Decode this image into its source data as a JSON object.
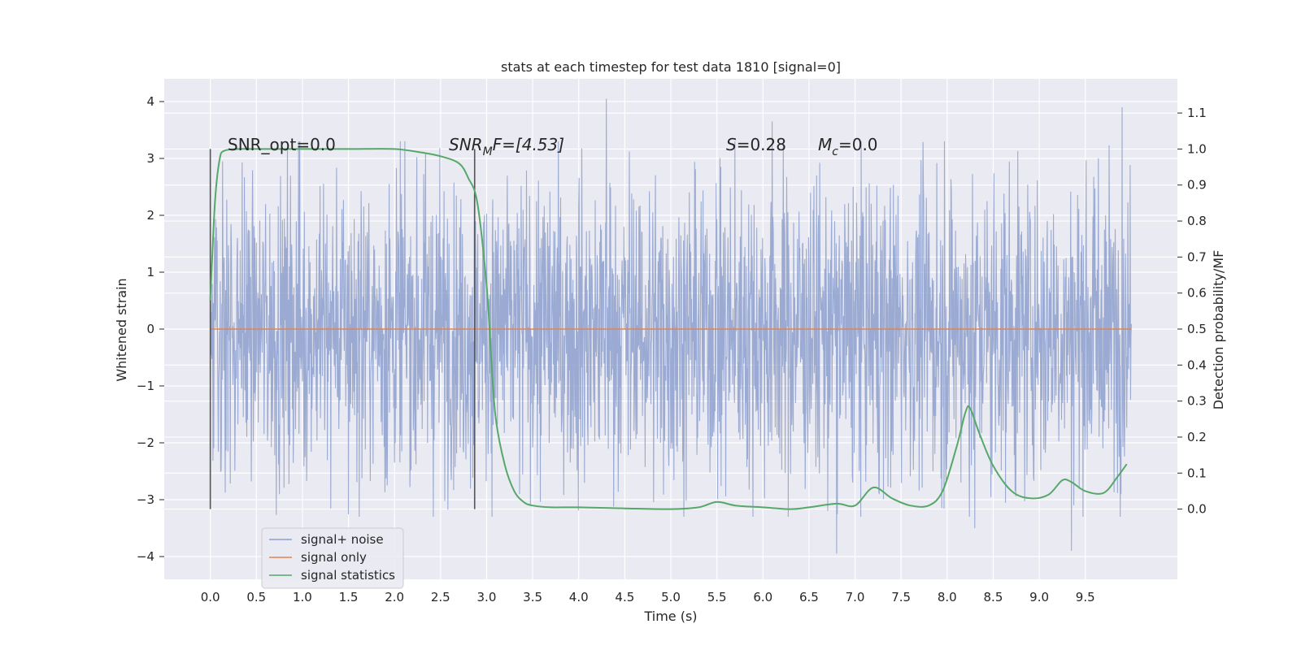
{
  "chart_data": {
    "type": "line",
    "title": "stats at each timestep for test data 1810 [signal=0]",
    "xlabel": "Time (s)",
    "ylabel": "Whitened strain",
    "y2label": "Detection probability/MF",
    "xlim": [
      -0.5,
      10.5
    ],
    "ylim": [
      -4.4,
      4.4
    ],
    "y2lim": [
      -0.195,
      1.195
    ],
    "xticks": [
      "0.0",
      "0.5",
      "1.0",
      "1.5",
      "2.0",
      "2.5",
      "3.0",
      "3.5",
      "4.0",
      "4.5",
      "5.0",
      "5.5",
      "6.0",
      "6.5",
      "7.0",
      "7.5",
      "8.0",
      "8.5",
      "9.0",
      "9.5"
    ],
    "yticks": [
      "4",
      "3",
      "2",
      "1",
      "0",
      "−1",
      "−2",
      "−3",
      "−4"
    ],
    "y2ticks": [
      "1.1",
      "1.0",
      "0.9",
      "0.8",
      "0.7",
      "0.6",
      "0.5",
      "0.4",
      "0.3",
      "0.2",
      "0.1",
      "0.0"
    ],
    "grid": true,
    "legend_position": "lower-left",
    "colors": {
      "noise": "#8c9fcc",
      "signal_only": "#dd8452",
      "statistics": "#55a868",
      "background": "#eaeaf2",
      "vline": "#555555"
    },
    "annotations": {
      "snr_opt": "SNR_opt=0.0",
      "snr_mf_base": "SNR",
      "snr_mf_sub": "M",
      "snr_mf_tail": "F=[4.53]",
      "s_var": "S",
      "s_value": "=0.28",
      "mc_var": "M",
      "mc_sub": "c",
      "mc_value": "=0.0"
    },
    "vertical_lines_x": [
      0.0,
      2.87
    ],
    "noise_series": {
      "name": "signal+ noise",
      "x_range": [
        0.0,
        10.0
      ],
      "typical_amplitude": 2.0,
      "notable_peaks": [
        {
          "x": 4.3,
          "y": 4.05
        },
        {
          "x": 9.9,
          "y": 3.9
        },
        {
          "x": 6.1,
          "y": 3.65
        },
        {
          "x": 6.8,
          "y": -3.95
        },
        {
          "x": 9.35,
          "y": -3.9
        },
        {
          "x": 8.3,
          "y": -3.5
        }
      ]
    },
    "signal_series": {
      "name": "signal only",
      "x": [
        0.0,
        10.0
      ],
      "y": [
        0.0,
        0.0
      ]
    },
    "statistics_series": {
      "name": "signal statistics",
      "x": [
        0.0,
        0.05,
        0.1,
        0.15,
        0.3,
        0.5,
        1.0,
        1.5,
        2.0,
        2.3,
        2.5,
        2.7,
        2.8,
        2.9,
        3.0,
        3.05,
        3.1,
        3.2,
        3.3,
        3.4,
        3.5,
        3.7,
        4.0,
        4.5,
        5.0,
        5.3,
        5.5,
        5.7,
        6.0,
        6.3,
        6.5,
        6.8,
        7.0,
        7.2,
        7.4,
        7.6,
        7.8,
        7.95,
        8.1,
        8.2,
        8.25,
        8.35,
        8.5,
        8.7,
        8.9,
        9.1,
        9.25,
        9.35,
        9.5,
        9.7,
        9.85,
        9.95
      ],
      "y": [
        0.58,
        0.85,
        0.97,
        0.995,
        1.0,
        1.0,
        1.0,
        1.0,
        1.0,
        0.99,
        0.98,
        0.96,
        0.92,
        0.85,
        0.62,
        0.42,
        0.25,
        0.12,
        0.05,
        0.02,
        0.01,
        0.005,
        0.005,
        0.002,
        0.0,
        0.005,
        0.02,
        0.01,
        0.005,
        0.0,
        0.005,
        0.015,
        0.01,
        0.06,
        0.03,
        0.01,
        0.01,
        0.05,
        0.17,
        0.27,
        0.28,
        0.21,
        0.12,
        0.05,
        0.03,
        0.04,
        0.08,
        0.075,
        0.05,
        0.045,
        0.09,
        0.125
      ]
    },
    "legend": [
      "signal+ noise",
      "signal only",
      "signal statistics"
    ]
  }
}
